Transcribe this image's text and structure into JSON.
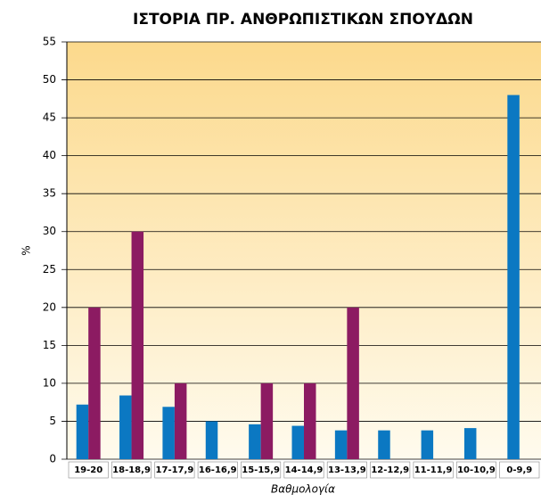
{
  "chart_data": {
    "type": "bar",
    "title": "ΙΣΤΟΡΙΑ ΠΡ. ΑΝΘΡΩΠΙΣΤΙΚΩΝ ΣΠΟΥΔΩΝ",
    "x_label": "Βαθμολογία",
    "y_label": "%",
    "categories": [
      "19-20",
      "18-18,9",
      "17-17,9",
      "16-16,9",
      "15-15,9",
      "14-14,9",
      "13-13,9",
      "12-12,9",
      "11-11,9",
      "10-10,9",
      "0-9,9"
    ],
    "series": [
      {
        "color": "#0b78c2",
        "values": [
          7.2,
          8.4,
          6.9,
          5.0,
          4.6,
          4.4,
          3.8,
          3.8,
          3.8,
          4.1,
          48
        ]
      },
      {
        "color": "#8c1b62",
        "values": [
          20,
          30,
          10,
          0,
          10,
          10,
          20,
          0,
          0,
          0,
          0
        ]
      }
    ],
    "ylim": [
      0,
      55
    ],
    "yticks": [
      0,
      5,
      10,
      15,
      20,
      25,
      30,
      35,
      40,
      45,
      50,
      55
    ],
    "grid": true
  }
}
